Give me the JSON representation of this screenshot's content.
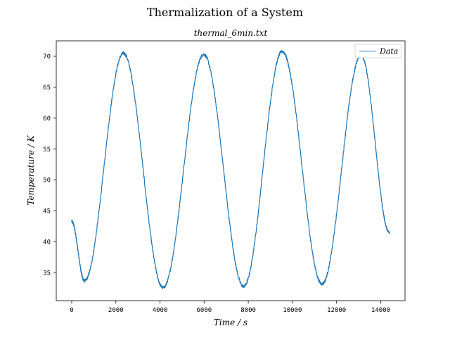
{
  "chart_data": {
    "type": "line",
    "title": "Thermalization of a System",
    "subtitle": "thermal_6min.txt",
    "xlabel": "Time / s",
    "ylabel": "Temperature / K",
    "xlim": [
      -700,
      15100
    ],
    "ylim": [
      30.5,
      72.5
    ],
    "xticks": [
      0,
      2000,
      4000,
      6000,
      8000,
      10000,
      12000,
      14000
    ],
    "yticks": [
      35,
      40,
      45,
      50,
      55,
      60,
      65,
      70
    ],
    "grid": false,
    "legend_position": "top-right",
    "series": [
      {
        "name": "Data",
        "color": "#1f77b4",
        "x": [
          0,
          578,
          2345,
          4140,
          5982,
          7790,
          9540,
          11340,
          13111,
          14400
        ],
        "y": [
          43.3,
          33.7,
          70.5,
          32.6,
          70.3,
          32.8,
          70.8,
          33.2,
          70.2,
          41.5
        ]
      }
    ]
  }
}
